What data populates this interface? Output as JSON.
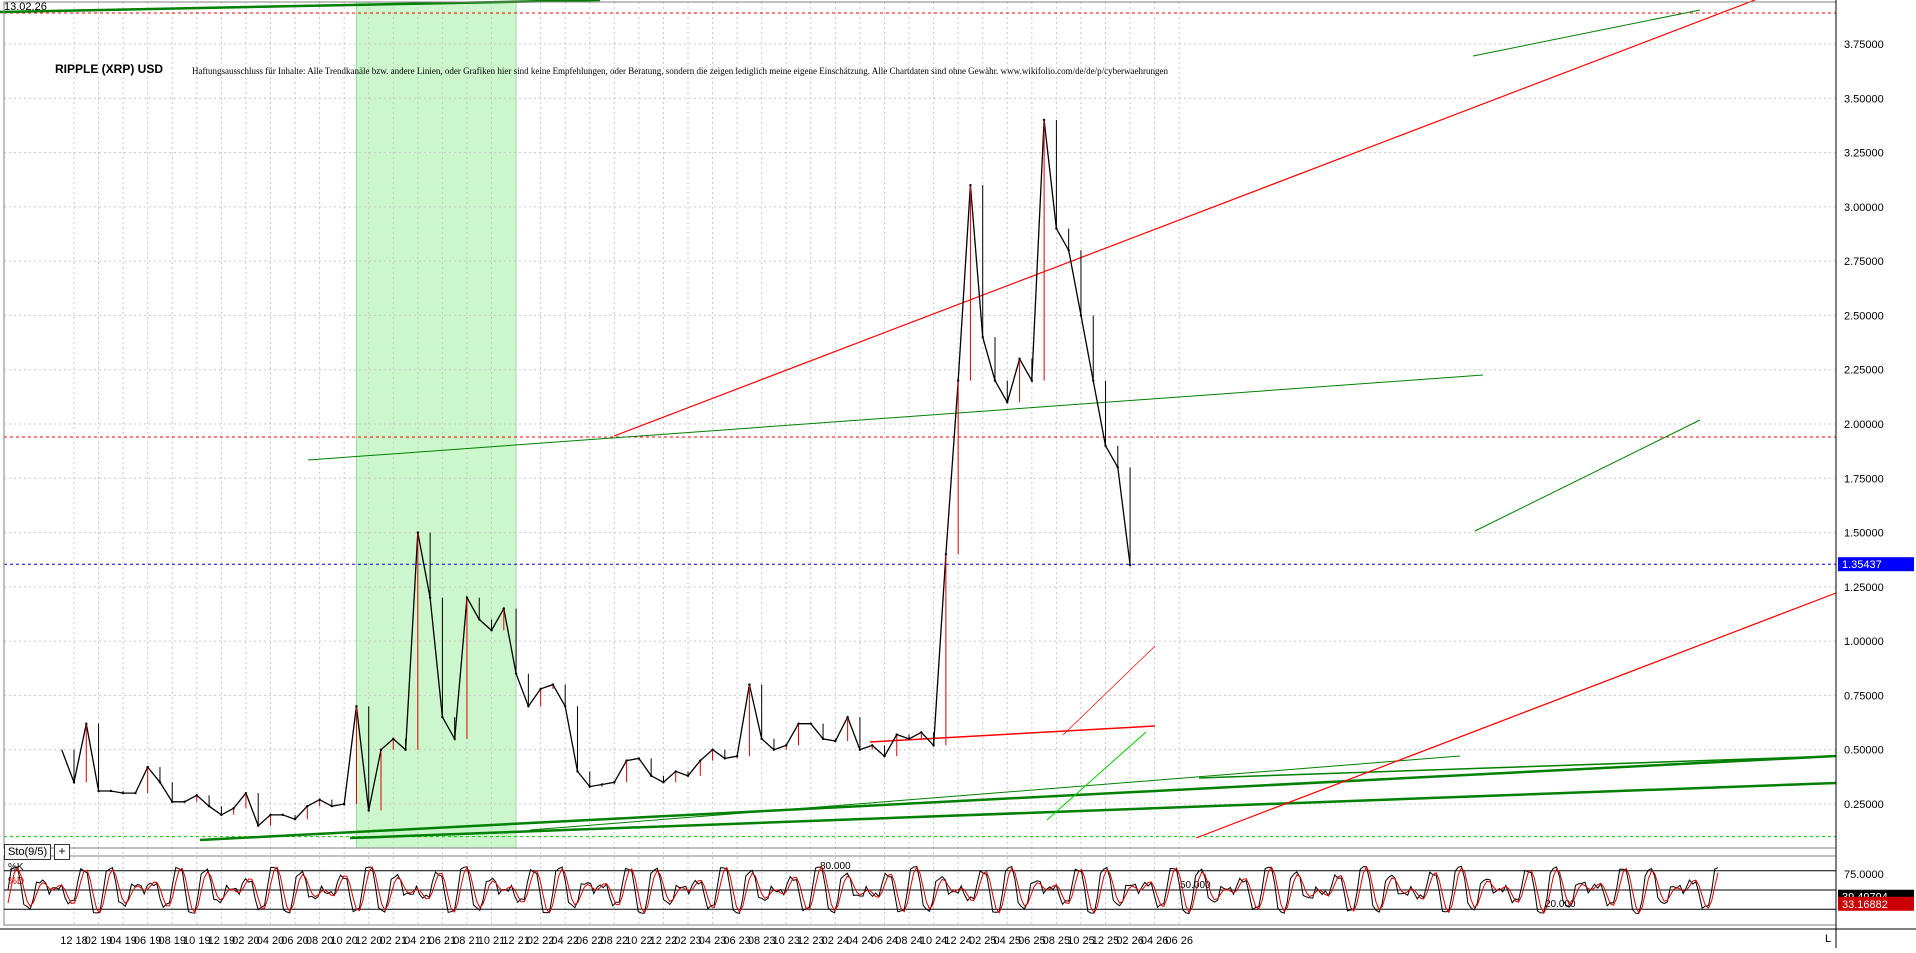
{
  "header": {
    "date": "13.02.26",
    "title": "RIPPLE (XRP) USD",
    "disclaimer": "Haftungsausschluss für Inhalte: Alle Trendkanäle bzw. andere Linien, oder Grafiken hier sind keine Empfehlungen, oder Beratung, sondern die zeigen lediglich meine eigene Einschätzung. Alle Chartdaten sind ohne Gewähr.  www.wikifolio.com/de/de/p/cyberwaehrungen"
  },
  "indicator": {
    "button_label": "Sto(9/5)",
    "add_label": "+",
    "k_label": "%K",
    "d_label": "%D",
    "level_high": "80.000",
    "level_mid": "50.000",
    "level_low": "20.000",
    "scale_top": "75.0000",
    "k_value": "39.49794",
    "d_value": "33.16882",
    "colors": {
      "k": "#000000",
      "d": "#e00000",
      "k_badge": "#000000",
      "d_badge": "#cc0000"
    }
  },
  "corner_label": "L",
  "chart_data": {
    "type": "line",
    "title": "RIPPLE (XRP) USD",
    "xlabel": "",
    "ylabel": "",
    "ylim": [
      0.05,
      3.95
    ],
    "yticks": [
      "0.25000",
      "0.50000",
      "0.75000",
      "1.00000",
      "1.25000",
      "1.50000",
      "1.75000",
      "2.00000",
      "2.25000",
      "2.50000",
      "2.75000",
      "3.00000",
      "3.25000",
      "3.50000",
      "3.75000"
    ],
    "xticks": [
      "12 18",
      "02 19",
      "04 19",
      "06 19",
      "08 19",
      "10 19",
      "12 19",
      "02 20",
      "04 20",
      "06 20",
      "08 20",
      "10 20",
      "12 20",
      "02 21",
      "04 21",
      "06 21",
      "08 21",
      "10 21",
      "12 21",
      "02 22",
      "04 22",
      "06 22",
      "08 22",
      "10 22",
      "12 22",
      "02 23",
      "04 23",
      "06 23",
      "08 23",
      "10 23",
      "12 23",
      "02 24",
      "04 24",
      "06 24",
      "08 24",
      "10 24",
      "12 24",
      "02 25",
      "04 25",
      "06 25",
      "08 25",
      "10 25",
      "12 25",
      "02 26",
      "04 26",
      "06 26"
    ],
    "grid": true,
    "current_price": "1.35437",
    "colors": {
      "price": "#000000",
      "up_wick": "#e00000",
      "resistance": "#ff0000",
      "support": "#008000",
      "current_line": "#0000ff",
      "current_badge": "#0000ff",
      "highlight": "#ccf7cc"
    },
    "highlight_range": [
      "11 20",
      "12 21"
    ],
    "series": [
      {
        "values": [
          {
            "x": "2018-11",
            "y": 0.5
          },
          {
            "x": "2018-12",
            "y": 0.35
          },
          {
            "x": "2019-01",
            "y": 0.62
          },
          {
            "x": "2019-02",
            "y": 0.31
          },
          {
            "x": "2019-03",
            "y": 0.31
          },
          {
            "x": "2019-04",
            "y": 0.3
          },
          {
            "x": "2019-05",
            "y": 0.3
          },
          {
            "x": "2019-06",
            "y": 0.42
          },
          {
            "x": "2019-07",
            "y": 0.35
          },
          {
            "x": "2019-08",
            "y": 0.26
          },
          {
            "x": "2019-09",
            "y": 0.26
          },
          {
            "x": "2019-10",
            "y": 0.29
          },
          {
            "x": "2019-11",
            "y": 0.24
          },
          {
            "x": "2019-12",
            "y": 0.2
          },
          {
            "x": "2020-01",
            "y": 0.23
          },
          {
            "x": "2020-02",
            "y": 0.3
          },
          {
            "x": "2020-03",
            "y": 0.15
          },
          {
            "x": "2020-04",
            "y": 0.2
          },
          {
            "x": "2020-05",
            "y": 0.2
          },
          {
            "x": "2020-06",
            "y": 0.18
          },
          {
            "x": "2020-07",
            "y": 0.24
          },
          {
            "x": "2020-08",
            "y": 0.27
          },
          {
            "x": "2020-09",
            "y": 0.24
          },
          {
            "x": "2020-10",
            "y": 0.25
          },
          {
            "x": "2020-11",
            "y": 0.7
          },
          {
            "x": "2020-12",
            "y": 0.22
          },
          {
            "x": "2021-01",
            "y": 0.5
          },
          {
            "x": "2021-02",
            "y": 0.55
          },
          {
            "x": "2021-03",
            "y": 0.5
          },
          {
            "x": "2021-04",
            "y": 1.5
          },
          {
            "x": "2021-05",
            "y": 1.2
          },
          {
            "x": "2021-06",
            "y": 0.65
          },
          {
            "x": "2021-07",
            "y": 0.55
          },
          {
            "x": "2021-08",
            "y": 1.2
          },
          {
            "x": "2021-09",
            "y": 1.1
          },
          {
            "x": "2021-10",
            "y": 1.05
          },
          {
            "x": "2021-11",
            "y": 1.15
          },
          {
            "x": "2021-12",
            "y": 0.85
          },
          {
            "x": "2022-01",
            "y": 0.7
          },
          {
            "x": "2022-02",
            "y": 0.78
          },
          {
            "x": "2022-03",
            "y": 0.8
          },
          {
            "x": "2022-04",
            "y": 0.7
          },
          {
            "x": "2022-05",
            "y": 0.4
          },
          {
            "x": "2022-06",
            "y": 0.33
          },
          {
            "x": "2022-07",
            "y": 0.34
          },
          {
            "x": "2022-08",
            "y": 0.35
          },
          {
            "x": "2022-09",
            "y": 0.45
          },
          {
            "x": "2022-10",
            "y": 0.46
          },
          {
            "x": "2022-11",
            "y": 0.38
          },
          {
            "x": "2022-12",
            "y": 0.35
          },
          {
            "x": "2023-01",
            "y": 0.4
          },
          {
            "x": "2023-02",
            "y": 0.38
          },
          {
            "x": "2023-03",
            "y": 0.45
          },
          {
            "x": "2023-04",
            "y": 0.5
          },
          {
            "x": "2023-05",
            "y": 0.46
          },
          {
            "x": "2023-06",
            "y": 0.47
          },
          {
            "x": "2023-07",
            "y": 0.8
          },
          {
            "x": "2023-08",
            "y": 0.55
          },
          {
            "x": "2023-09",
            "y": 0.5
          },
          {
            "x": "2023-10",
            "y": 0.52
          },
          {
            "x": "2023-11",
            "y": 0.62
          },
          {
            "x": "2023-12",
            "y": 0.62
          },
          {
            "x": "2024-01",
            "y": 0.55
          },
          {
            "x": "2024-02",
            "y": 0.54
          },
          {
            "x": "2024-03",
            "y": 0.65
          },
          {
            "x": "2024-04",
            "y": 0.5
          },
          {
            "x": "2024-05",
            "y": 0.52
          },
          {
            "x": "2024-06",
            "y": 0.47
          },
          {
            "x": "2024-07",
            "y": 0.57
          },
          {
            "x": "2024-08",
            "y": 0.55
          },
          {
            "x": "2024-09",
            "y": 0.58
          },
          {
            "x": "2024-10",
            "y": 0.52
          },
          {
            "x": "2024-11",
            "y": 1.4
          },
          {
            "x": "2024-12",
            "y": 2.2
          },
          {
            "x": "2025-01",
            "y": 3.1
          },
          {
            "x": "2025-02",
            "y": 2.4
          },
          {
            "x": "2025-03",
            "y": 2.2
          },
          {
            "x": "2025-04",
            "y": 2.1
          },
          {
            "x": "2025-05",
            "y": 2.3
          },
          {
            "x": "2025-06",
            "y": 2.2
          },
          {
            "x": "2025-07",
            "y": 3.4
          },
          {
            "x": "2025-08",
            "y": 2.9
          },
          {
            "x": "2025-09",
            "y": 2.8
          },
          {
            "x": "2025-10",
            "y": 2.5
          },
          {
            "x": "2025-11",
            "y": 2.2
          },
          {
            "x": "2025-12",
            "y": 1.9
          },
          {
            "x": "2026-01",
            "y": 1.8
          },
          {
            "x": "2026-02",
            "y": 1.35
          }
        ]
      }
    ]
  }
}
